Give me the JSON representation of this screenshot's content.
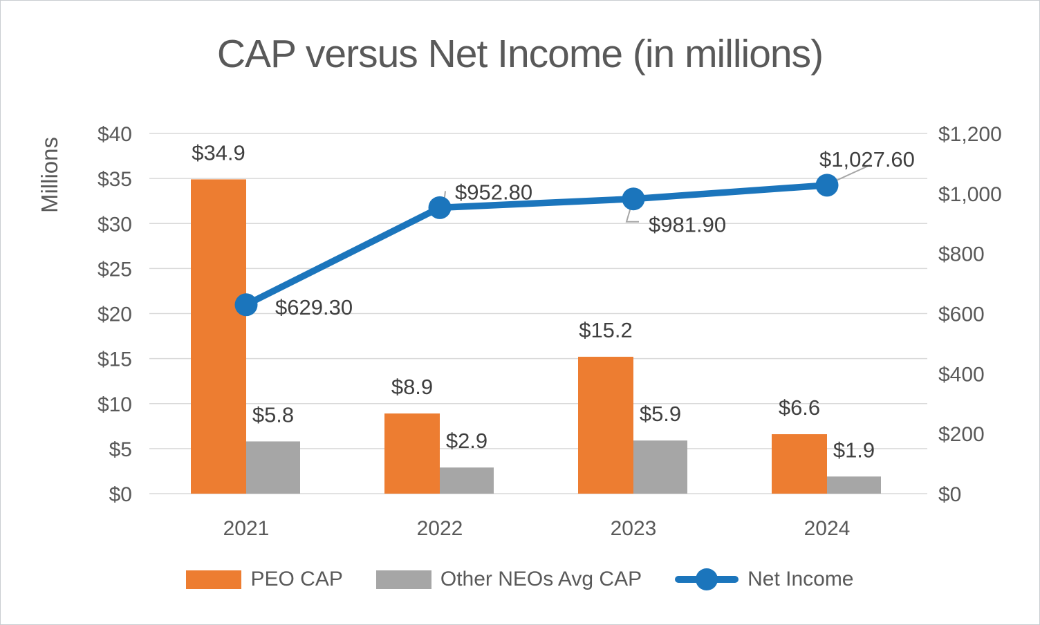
{
  "page": {
    "title": "CAP versus Net Income (in millions)"
  },
  "chart_data": {
    "type": "combo",
    "title": "CAP versus Net Income (in millions)",
    "categories": [
      "2021",
      "2022",
      "2023",
      "2024"
    ],
    "series": [
      {
        "name": "PEO CAP",
        "type": "bar",
        "axis": "left",
        "color": "#ED7D31",
        "values": [
          34.9,
          8.9,
          15.2,
          6.6
        ],
        "labels": [
          "$34.9",
          "$8.9",
          "$15.2",
          "$6.6"
        ]
      },
      {
        "name": "Other NEOs Avg CAP",
        "type": "bar",
        "axis": "left",
        "color": "#A6A6A6",
        "values": [
          5.8,
          2.9,
          5.9,
          1.9
        ],
        "labels": [
          "$5.8",
          "$2.9",
          "$5.9",
          "$1.9"
        ]
      },
      {
        "name": "Net Income",
        "type": "line",
        "axis": "right",
        "color": "#1B75BC",
        "values": [
          629.3,
          952.8,
          981.9,
          1027.6
        ],
        "labels": [
          "$629.30",
          "$952.80",
          "$981.90",
          "$1,027.60"
        ]
      }
    ],
    "left_axis": {
      "title": "Millions",
      "min": 0,
      "max": 40,
      "step": 5,
      "tick_labels": [
        "$40",
        "$35",
        "$30",
        "$25",
        "$20",
        "$15",
        "$10",
        "$5",
        "$0"
      ]
    },
    "right_axis": {
      "min": 0,
      "max": 1200,
      "step": 200,
      "tick_labels": [
        "$1,200",
        "$1,000",
        "$800",
        "$600",
        "$400",
        "$200",
        "$0"
      ]
    },
    "legend": {
      "position": "bottom",
      "entries": [
        {
          "label": "PEO CAP",
          "marker": "rect",
          "color": "#ED7D31"
        },
        {
          "label": "Other NEOs Avg CAP",
          "marker": "rect",
          "color": "#A6A6A6"
        },
        {
          "label": "Net Income",
          "marker": "line-dot",
          "color": "#1B75BC"
        }
      ]
    },
    "grid": true,
    "colors": {
      "gridline": "#D9D9D9",
      "axis_text": "#595959",
      "data_label_text": "#3F3F3F",
      "leader_line": "#A6A6A6",
      "title_text": "#595959"
    }
  }
}
